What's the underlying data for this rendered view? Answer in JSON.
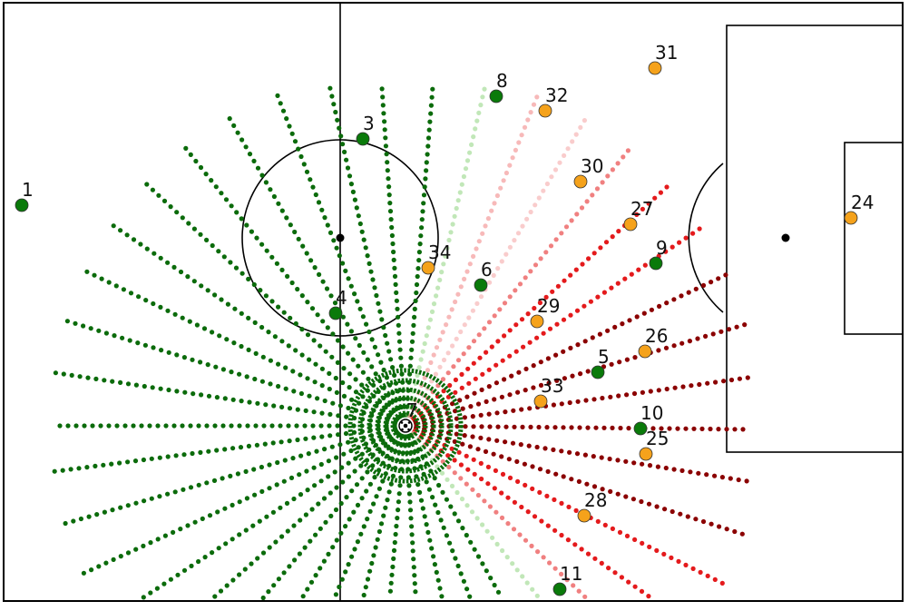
{
  "colors": {
    "background": "#ffffff",
    "lines": "#000000",
    "team_a": "#0a7a0a",
    "team_b": "#f5a21b",
    "ray_green_dark": "#0b6b0b",
    "ray_green_light": "#8ed47e",
    "ray_red_light": "#f08080",
    "ray_red": "#e41a1c",
    "ray_red_dark": "#8b0000"
  },
  "team_a_players": [
    {
      "label": "1"
    },
    {
      "label": "3"
    },
    {
      "label": "4"
    },
    {
      "label": "5"
    },
    {
      "label": "6"
    },
    {
      "label": "7"
    },
    {
      "label": "8"
    },
    {
      "label": "9"
    },
    {
      "label": "10"
    },
    {
      "label": "11"
    }
  ],
  "team_b_players": [
    {
      "label": "24"
    },
    {
      "label": "25"
    },
    {
      "label": "26"
    },
    {
      "label": "27"
    },
    {
      "label": "28"
    },
    {
      "label": "29"
    },
    {
      "label": "30"
    },
    {
      "label": "31"
    },
    {
      "label": "32"
    },
    {
      "label": "33"
    },
    {
      "label": "34"
    }
  ],
  "ball": {
    "icon": "soccer-ball-icon"
  }
}
